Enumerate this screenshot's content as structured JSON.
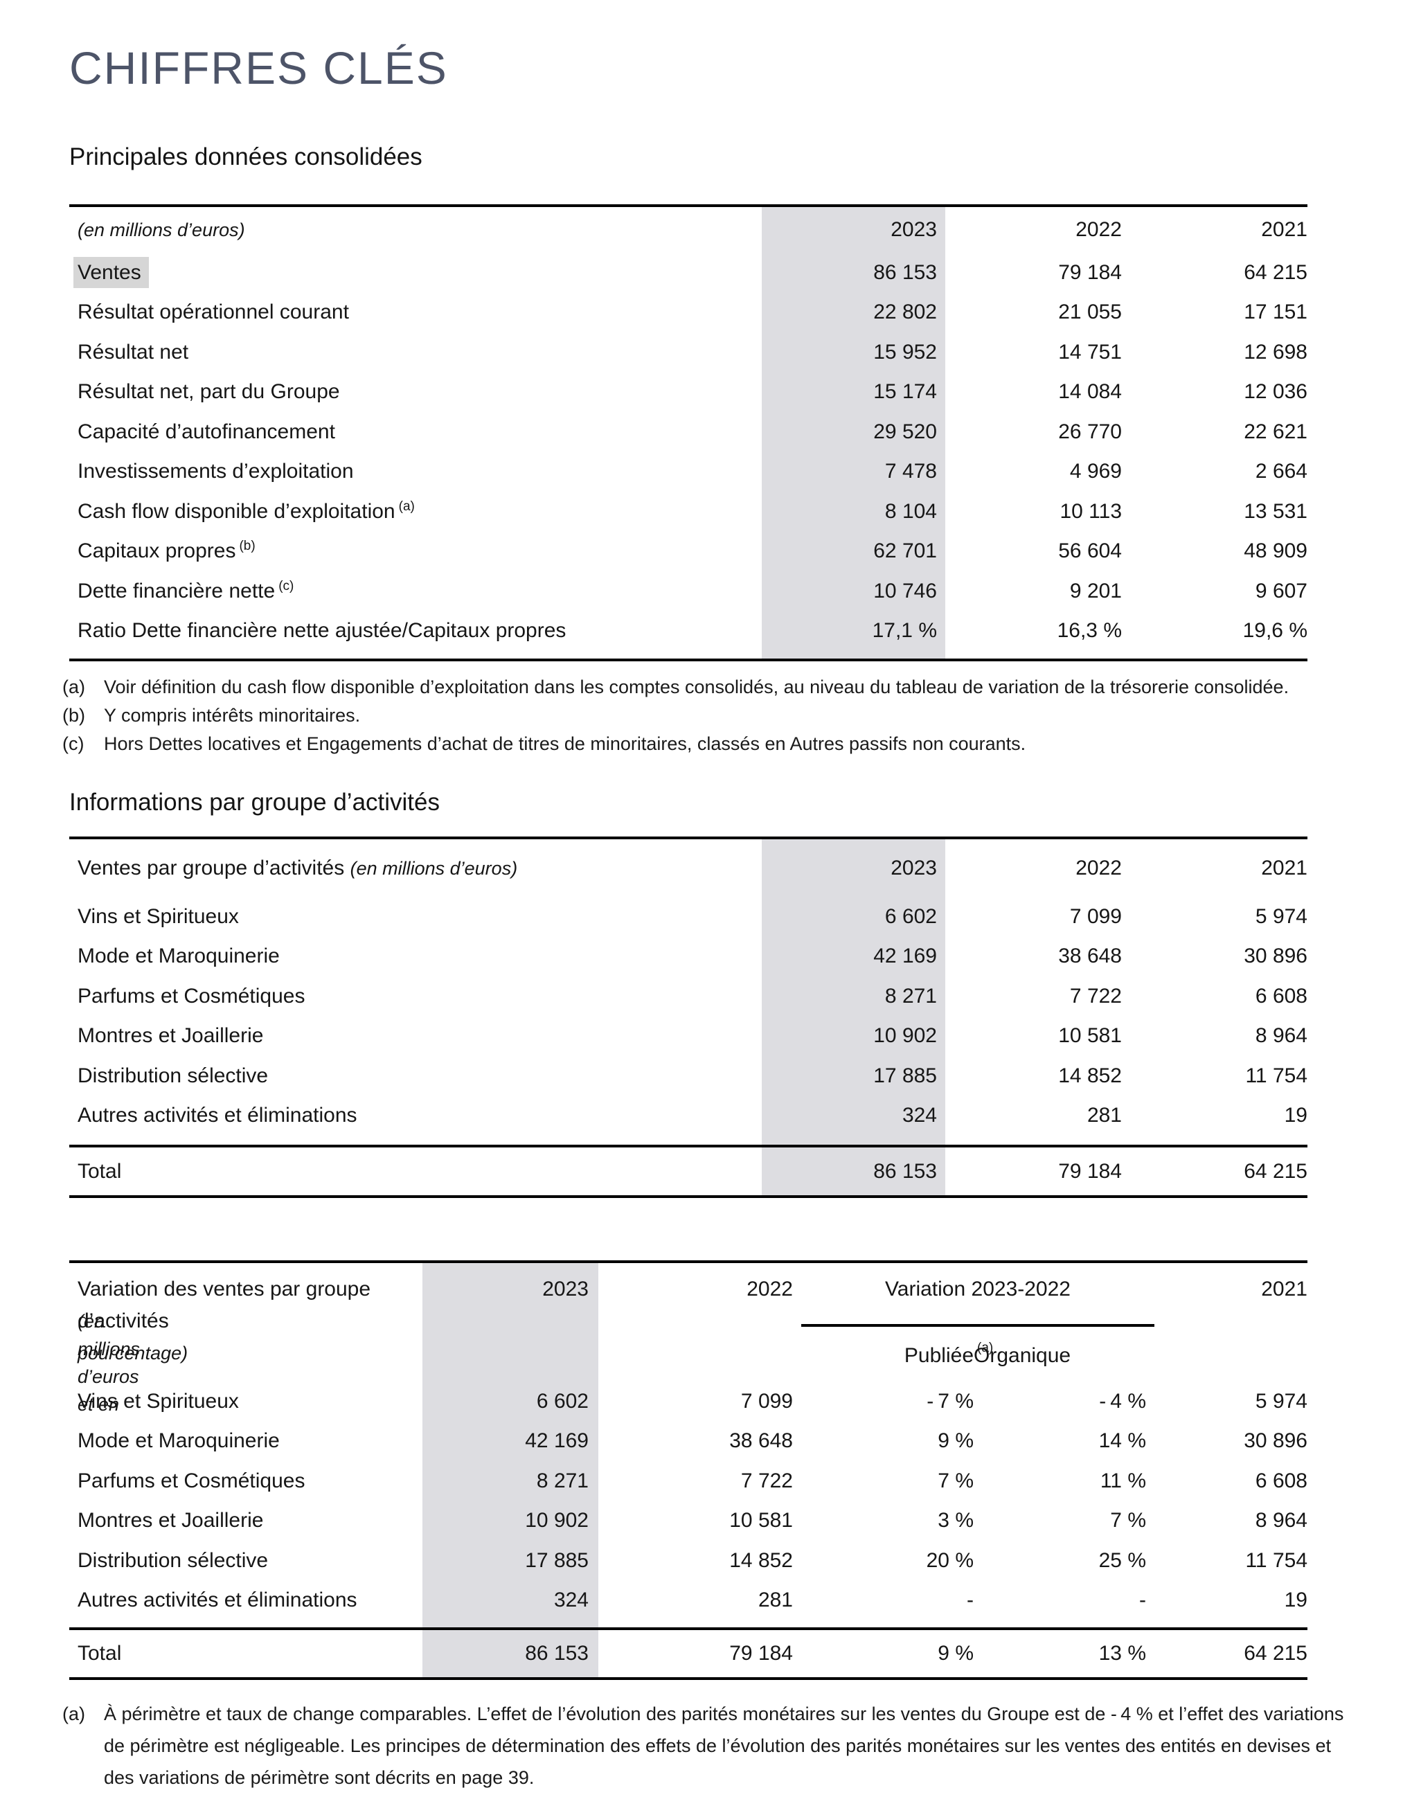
{
  "page": {
    "title": "CHIFFRES CLÉS"
  },
  "colors": {
    "title": "#4d5468",
    "band": "#dddde1",
    "highlight": "#d6d6d6"
  },
  "consolidated": {
    "heading": "Principales données consolidées",
    "table": {
      "unit_label": "(en millions d’euros)",
      "years": [
        "2023",
        "2022",
        "2021"
      ],
      "rows": [
        {
          "label": "Ventes",
          "sup": "",
          "v0": "86 153",
          "v1": "79 184",
          "v2": "64 215"
        },
        {
          "label": "Résultat opérationnel courant",
          "sup": "",
          "v0": "22 802",
          "v1": "21 055",
          "v2": "17 151"
        },
        {
          "label": "Résultat net",
          "sup": "",
          "v0": "15 952",
          "v1": "14 751",
          "v2": "12 698"
        },
        {
          "label": "Résultat net, part du Groupe",
          "sup": "",
          "v0": "15 174",
          "v1": "14 084",
          "v2": "12 036"
        },
        {
          "label": "Capacité d’autofinancement",
          "sup": "",
          "v0": "29 520",
          "v1": "26 770",
          "v2": "22 621"
        },
        {
          "label": "Investissements d’exploitation",
          "sup": "",
          "v0": "7 478",
          "v1": "4 969",
          "v2": "2 664"
        },
        {
          "label": "Cash flow disponible d’exploitation",
          "sup": "(a)",
          "v0": "8 104",
          "v1": "10 113",
          "v2": "13 531"
        },
        {
          "label": "Capitaux propres",
          "sup": "(b)",
          "v0": "62 701",
          "v1": "56 604",
          "v2": "48 909"
        },
        {
          "label": "Dette financière nette",
          "sup": "(c)",
          "v0": "10 746",
          "v1": "9 201",
          "v2": "9 607"
        },
        {
          "label": "Ratio Dette financière nette ajustée/Capitaux propres",
          "sup": "",
          "v0": "17,1 %",
          "v1": "16,3 %",
          "v2": "19,6 %"
        }
      ]
    },
    "footnotes": [
      {
        "mark": "(a)",
        "text": "Voir définition du cash flow disponible d’exploitation dans les comptes consolidés, au niveau du tableau de variation de la trésorerie consolidée."
      },
      {
        "mark": "(b)",
        "text": "Y compris intérêts minoritaires."
      },
      {
        "mark": "(c)",
        "text": "Hors Dettes locatives et Engagements d’achat de titres de minoritaires, classés en Autres passifs non courants."
      }
    ]
  },
  "groups": {
    "heading": "Informations par groupe d’activités",
    "sales_table": {
      "title": "Ventes par groupe d’activités",
      "unit_label": "(en millions d’euros)",
      "years": [
        "2023",
        "2022",
        "2021"
      ],
      "rows": [
        {
          "label": "Vins et Spiritueux",
          "v0": "6 602",
          "v1": "7 099",
          "v2": "5 974"
        },
        {
          "label": "Mode et Maroquinerie",
          "v0": "42 169",
          "v1": "38 648",
          "v2": "30 896"
        },
        {
          "label": "Parfums et Cosmétiques",
          "v0": "8 271",
          "v1": "7 722",
          "v2": "6 608"
        },
        {
          "label": "Montres et Joaillerie",
          "v0": "10 902",
          "v1": "10 581",
          "v2": "8 964"
        },
        {
          "label": "Distribution sélective",
          "v0": "17 885",
          "v1": "14 852",
          "v2": "11 754"
        },
        {
          "label": "Autres activités et éliminations",
          "v0": "324",
          "v1": "281",
          "v2": "19"
        }
      ],
      "total": {
        "label": "Total",
        "v0": "86 153",
        "v1": "79 184",
        "v2": "64 215"
      }
    },
    "variation_table": {
      "title_line1": "Variation des ventes par groupe",
      "title_line2": "d’activités ",
      "title_line2_unit": "(en millions d’euros et en",
      "title_line3_unit": "pourcentage)",
      "col_2023": "2023",
      "col_2022": "2022",
      "col_variation": "Variation 2023-2022",
      "col_2021": "2021",
      "sub_publiee": "Publiée",
      "sub_organique": "Organique",
      "sub_organique_sup": "(a)",
      "rows": [
        {
          "label": "Vins et Spiritueux",
          "v2023": "6 602",
          "v2022": "7 099",
          "pub": "- 7 %",
          "org": "- 4 %",
          "v2021": "5 974"
        },
        {
          "label": "Mode et Maroquinerie",
          "v2023": "42 169",
          "v2022": "38 648",
          "pub": "9 %",
          "org": "14 %",
          "v2021": "30 896"
        },
        {
          "label": "Parfums et Cosmétiques",
          "v2023": "8 271",
          "v2022": "7 722",
          "pub": "7 %",
          "org": "11 %",
          "v2021": "6 608"
        },
        {
          "label": "Montres et Joaillerie",
          "v2023": "10 902",
          "v2022": "10 581",
          "pub": "3 %",
          "org": "7 %",
          "v2021": "8 964"
        },
        {
          "label": "Distribution sélective",
          "v2023": "17 885",
          "v2022": "14 852",
          "pub": "20 %",
          "org": "25 %",
          "v2021": "11 754"
        },
        {
          "label": "Autres activités et éliminations",
          "v2023": "324",
          "v2022": "281",
          "pub": "-",
          "org": "-",
          "v2021": "19"
        }
      ],
      "total": {
        "label": "Total",
        "v2023": "86 153",
        "v2022": "79 184",
        "pub": "9 %",
        "org": "13 %",
        "v2021": "64 215"
      }
    },
    "footnote": {
      "mark": "(a)",
      "line1": "À périmètre et taux de change comparables. L’effet de l’évolution des parités monétaires sur les ventes du Groupe est de - 4 % et l’effet des variations",
      "line2": "de périmètre est négligeable. Les principes de détermination des effets de l’évolution des parités monétaires sur les ventes des entités en devises et",
      "line3": "des variations de périmètre sont décrits en page 39."
    }
  }
}
